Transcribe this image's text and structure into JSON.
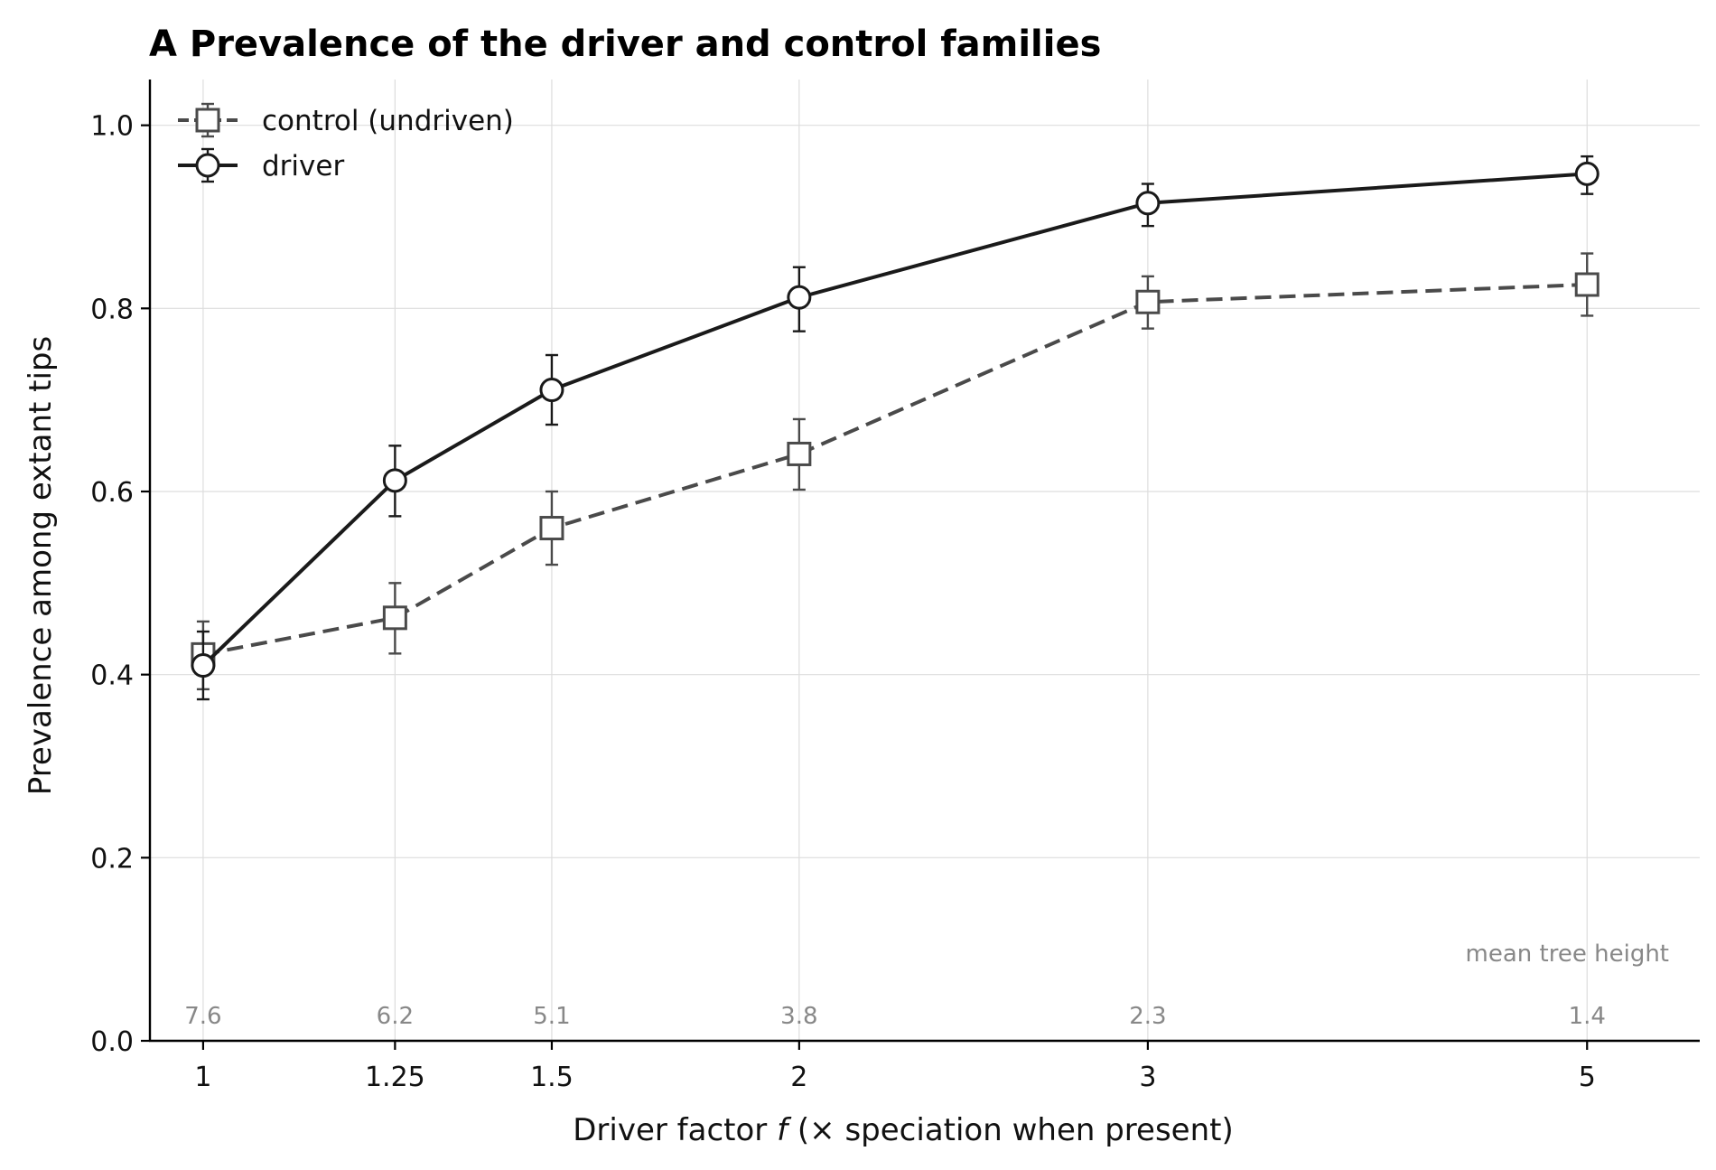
{
  "chart_data": {
    "type": "line",
    "title": "A   Prevalence of the driver and control families",
    "xlabel_prefix": "Driver factor ",
    "xlabel_var": "f",
    "xlabel_suffix": " (× speciation when present)",
    "ylabel": "Prevalence among extant tips",
    "x_ticks": [
      "1",
      "1.25",
      "1.5",
      "2",
      "3",
      "5"
    ],
    "x_scale": "log",
    "y_ticks": [
      "0.0",
      "0.2",
      "0.4",
      "0.6",
      "0.8",
      "1.0"
    ],
    "ylim": [
      0,
      1.05
    ],
    "xlim": [
      0.94,
      5.7
    ],
    "grid": true,
    "legend_position": "top-left",
    "x": [
      1,
      1.25,
      1.5,
      2,
      3,
      5
    ],
    "series": [
      {
        "name": "control (undriven)",
        "values": [
          0.422,
          0.462,
          0.56,
          0.641,
          0.807,
          0.826
        ],
        "err_low": [
          0.384,
          0.423,
          0.52,
          0.602,
          0.778,
          0.792
        ],
        "err_high": [
          0.458,
          0.5,
          0.6,
          0.679,
          0.835,
          0.86
        ],
        "color": "#4a4a4a",
        "line_style": "dashed",
        "marker": "square"
      },
      {
        "name": "driver",
        "values": [
          0.41,
          0.612,
          0.711,
          0.812,
          0.915,
          0.947
        ],
        "err_low": [
          0.373,
          0.573,
          0.673,
          0.775,
          0.89,
          0.925
        ],
        "err_high": [
          0.447,
          0.65,
          0.749,
          0.845,
          0.936,
          0.966
        ],
        "color": "#1a1a1a",
        "line_style": "solid",
        "marker": "circle"
      }
    ],
    "annotation": "mean tree height",
    "tree_heights": [
      "7.6",
      "6.2",
      "5.1",
      "3.8",
      "2.3",
      "1.4"
    ]
  }
}
